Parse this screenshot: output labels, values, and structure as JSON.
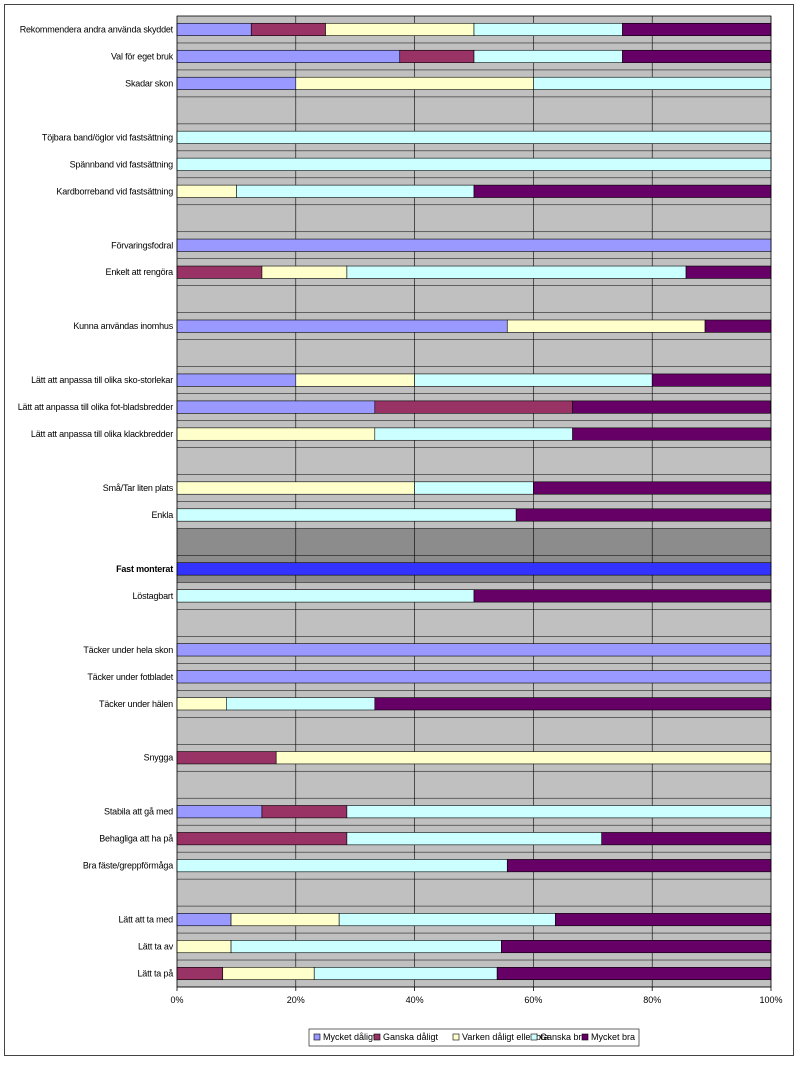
{
  "chart_data": {
    "type": "bar",
    "orientation": "horizontal",
    "stacked": "percent",
    "title": "",
    "xlabel": "",
    "ylabel": "",
    "xlim": [
      0,
      100
    ],
    "x_ticks": [
      "0%",
      "20%",
      "40%",
      "60%",
      "80%",
      "100%"
    ],
    "grid": true,
    "legend_position": "bottom",
    "categories": [
      "Rekommendera andra använda skyddet",
      "Val för eget bruk",
      "Skadar skon",
      "",
      "Töjbara band/öglor vid fastsättning",
      "Spännband vid fastsättning",
      "Kardborreband vid fastsättning",
      "",
      "Förvaringsfodral",
      "Enkelt att rengöra",
      "",
      "Kunna användas inomhus",
      "",
      "Lätt att anpassa till olika sko-storlekar",
      "Lätt att anpassa till olika fot-bladsbredder",
      "Lätt att anpassa till olika klackbredder",
      "",
      "Små/Tar liten plats",
      "Enkla",
      "",
      "Fast monterat",
      "Löstagbart",
      "",
      "Täcker under hela skon",
      "Täcker under fotbladet",
      "Täcker under hälen",
      "",
      "Snygga",
      "",
      "Stabila att gå med",
      "Behagliga att ha på",
      "Bra fäste/greppförmåga",
      "",
      "Lätt att ta med",
      "Lätt ta av",
      "Lätt ta på"
    ],
    "highlighted_category": "Fast monterat",
    "series": [
      {
        "name": "Mycket dåligt",
        "color": "#9999ff",
        "values": [
          12.5,
          37.5,
          20,
          0,
          0,
          0,
          0,
          0,
          100,
          0,
          0,
          55.6,
          0,
          20,
          33.3,
          0,
          0,
          0,
          0,
          0,
          100,
          0,
          0,
          100,
          100,
          0,
          0,
          0,
          0,
          14.3,
          0,
          0,
          0,
          9.1,
          0,
          0
        ]
      },
      {
        "name": "Ganska dåligt",
        "color": "#993366",
        "values": [
          12.5,
          12.5,
          0,
          0,
          0,
          0,
          0,
          0,
          0,
          14.3,
          0,
          0,
          0,
          0,
          33.3,
          0,
          0,
          0,
          0,
          0,
          0,
          0,
          0,
          0,
          0,
          0,
          0,
          16.7,
          0,
          14.3,
          28.6,
          0,
          0,
          0,
          0,
          7.7
        ]
      },
      {
        "name": "Varken dåligt eller bra",
        "color": "#ffffcc",
        "values": [
          25,
          0,
          40,
          0,
          0,
          0,
          10,
          0,
          0,
          14.3,
          0,
          33.3,
          0,
          20,
          0,
          33.3,
          0,
          40,
          0,
          0,
          0,
          0,
          0,
          0,
          0,
          8.3,
          0,
          83.3,
          0,
          0,
          0,
          0,
          0,
          18.2,
          9.1,
          15.4
        ]
      },
      {
        "name": "Ganska bra",
        "color": "#ccffff",
        "values": [
          25,
          25,
          40,
          0,
          100,
          100,
          40,
          0,
          0,
          57.1,
          0,
          0,
          0,
          40,
          0,
          33.3,
          0,
          20,
          57.1,
          0,
          0,
          50,
          0,
          0,
          0,
          25,
          0,
          0,
          0,
          71.4,
          42.9,
          55.6,
          0,
          36.4,
          45.5,
          30.8
        ]
      },
      {
        "name": "Mycket bra",
        "color": "#660066",
        "values": [
          25,
          25,
          0,
          0,
          0,
          0,
          50,
          0,
          0,
          14.3,
          0,
          11.1,
          0,
          20,
          33.3,
          33.4,
          0,
          40,
          42.9,
          0,
          0,
          50,
          0,
          0,
          0,
          66.7,
          0,
          0,
          0,
          0,
          28.5,
          44.4,
          0,
          36.3,
          45.4,
          46.1
        ]
      }
    ]
  }
}
